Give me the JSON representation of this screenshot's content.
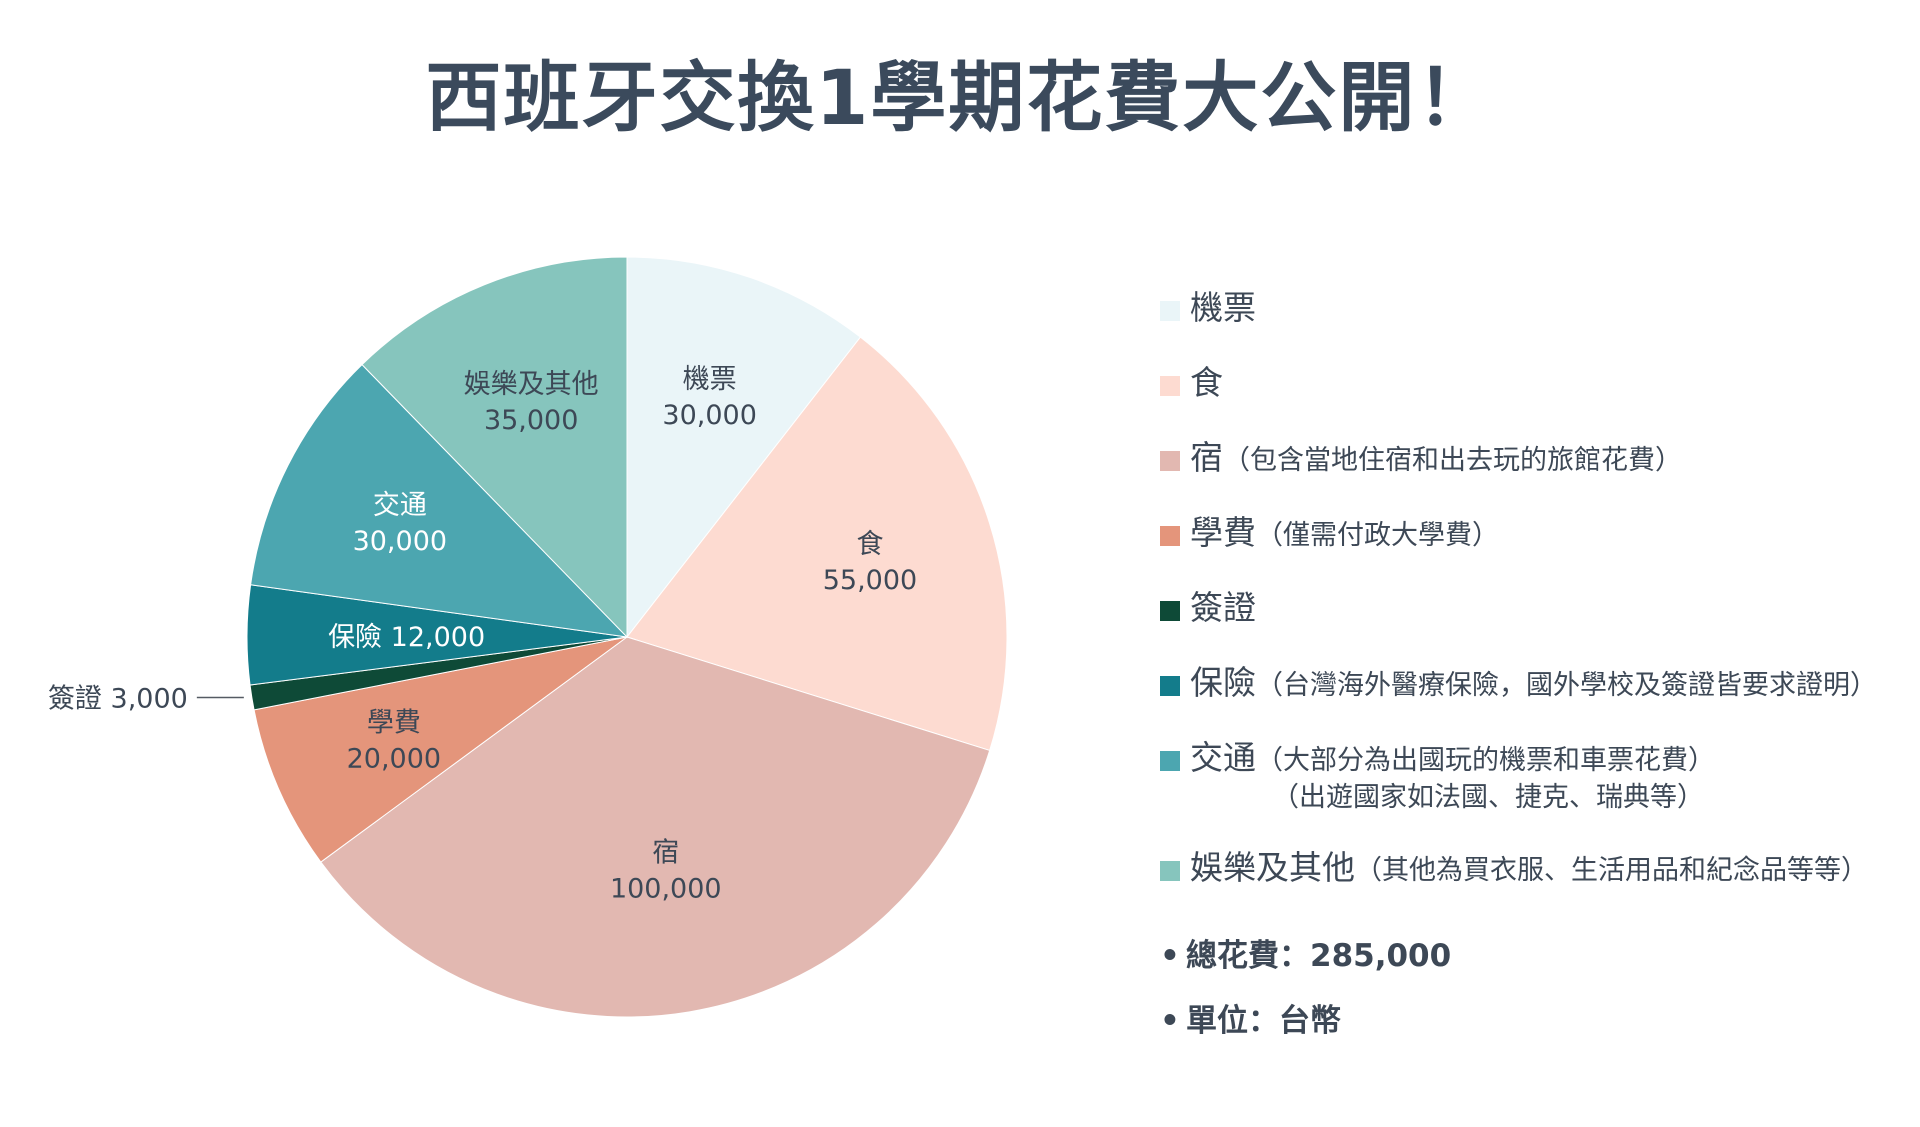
{
  "title": "西班牙交換1學期花費大公開！",
  "chart_data": {
    "type": "pie",
    "title": "西班牙交換1學期花費大公開！",
    "slices": [
      {
        "label": "機票",
        "value": 30000,
        "value_text": "30,000",
        "color": "#eaf5f8",
        "text_color": "#3d4856"
      },
      {
        "label": "食",
        "value": 55000,
        "value_text": "55,000",
        "color": "#fddbd1",
        "text_color": "#3d4856"
      },
      {
        "label": "宿",
        "value": 100000,
        "value_text": "100,000",
        "color": "#e2b8b1",
        "text_color": "#3d4856"
      },
      {
        "label": "學費",
        "value": 20000,
        "value_text": "20,000",
        "color": "#e4957b",
        "text_color": "#3d4856"
      },
      {
        "label": "簽證",
        "value": 3000,
        "value_text": "3,000",
        "color": "#0e4a37",
        "text_color": "#3d4856"
      },
      {
        "label": "保險",
        "value": 12000,
        "value_text": "12,000",
        "color": "#137c8b",
        "text_color": "#ffffff"
      },
      {
        "label": "交通",
        "value": 30000,
        "value_text": "30,000",
        "color": "#4ca6b0",
        "text_color": "#ffffff"
      },
      {
        "label": "娛樂及其他",
        "value": 35000,
        "value_text": "35,000",
        "color": "#86c5bd",
        "text_color": "#3d4856"
      }
    ],
    "total": 285000,
    "legend_placement": "right"
  },
  "legend": [
    {
      "name": "機票",
      "note": "",
      "note2": "",
      "color": "#eaf5f8"
    },
    {
      "name": "食",
      "note": "",
      "note2": "",
      "color": "#fddbd1"
    },
    {
      "name": "宿",
      "note": "（包含當地住宿和出去玩的旅館花費）",
      "note2": "",
      "color": "#e2b8b1"
    },
    {
      "name": "學費",
      "note": "（僅需付政大學費）",
      "note2": "",
      "color": "#e4957b"
    },
    {
      "name": "簽證",
      "note": "",
      "note2": "",
      "color": "#0e4a37"
    },
    {
      "name": "保險",
      "note": "（台灣海外醫療保險，國外學校及簽證皆要求證明）",
      "note2": "",
      "color": "#137c8b"
    },
    {
      "name": "交通",
      "note": "（大部分為出國玩的機票和車票花費）",
      "note2": "（出遊國家如法國、捷克、瑞典等）",
      "color": "#4ca6b0"
    },
    {
      "name": "娛樂及其他",
      "note": "（其他為買衣服、生活用品和紀念品等等）",
      "note2": "",
      "color": "#86c5bd"
    }
  ],
  "summary": {
    "bullet": "•",
    "total": "總花費：285,000",
    "unit": "單位：台幣"
  }
}
